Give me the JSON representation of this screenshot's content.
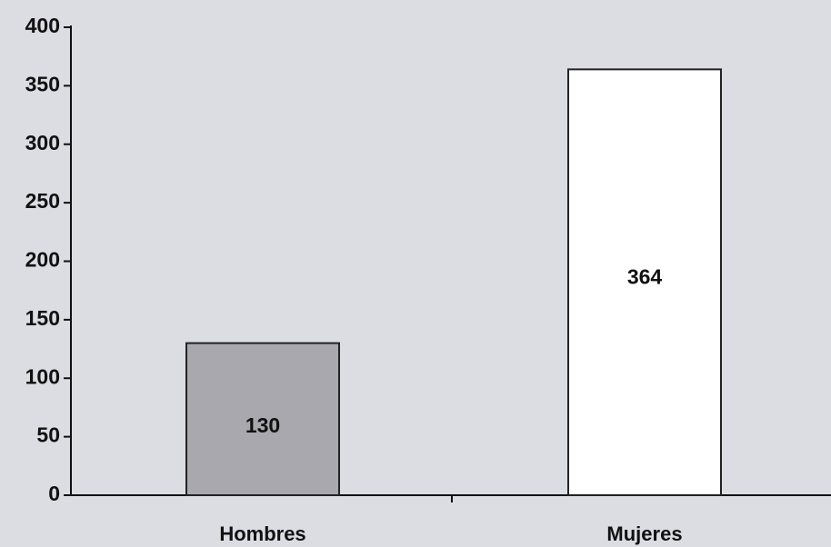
{
  "chart_data": {
    "type": "bar",
    "categories": [
      "Hombres",
      "Mujeres"
    ],
    "values": [
      130,
      364
    ],
    "colors": [
      "#a8a8ae",
      "#ffffff"
    ],
    "ylim": [
      0,
      400
    ],
    "yticks": [
      0,
      50,
      100,
      150,
      200,
      250,
      300,
      350,
      400
    ],
    "grid": false
  }
}
